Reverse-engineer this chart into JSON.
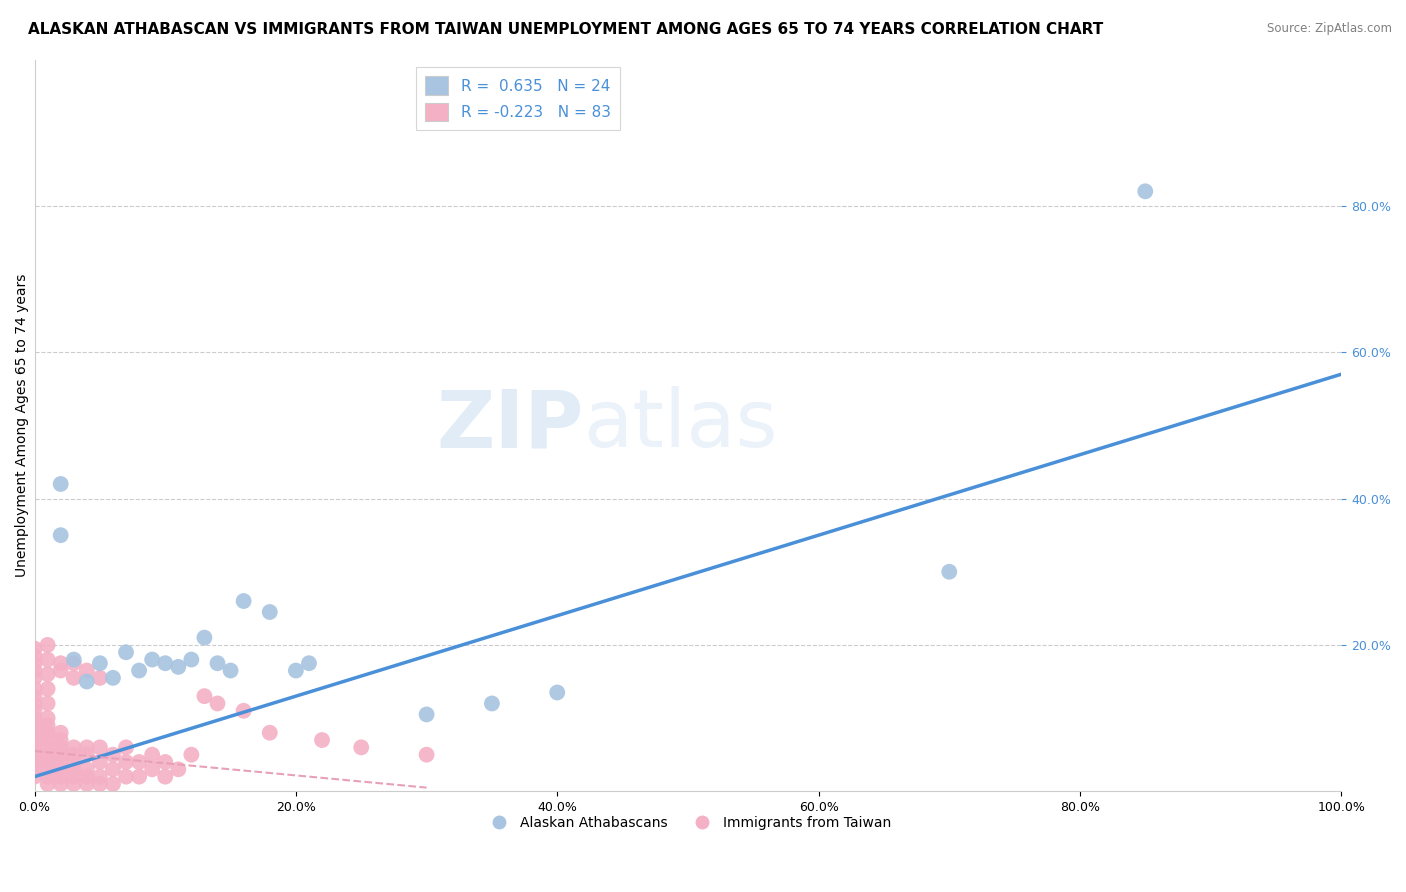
{
  "title": "ALASKAN ATHABASCAN VS IMMIGRANTS FROM TAIWAN UNEMPLOYMENT AMONG AGES 65 TO 74 YEARS CORRELATION CHART",
  "source": "Source: ZipAtlas.com",
  "ylabel": "Unemployment Among Ages 65 to 74 years",
  "xlabel": "",
  "xlim": [
    0,
    1.0
  ],
  "ylim": [
    0,
    1.0
  ],
  "xticks": [
    0.0,
    0.2,
    0.4,
    0.6,
    0.8,
    1.0
  ],
  "xticklabels": [
    "0.0%",
    "20.0%",
    "40.0%",
    "60.0%",
    "80.0%",
    "100.0%"
  ],
  "yticks": [
    0.2,
    0.4,
    0.6,
    0.8
  ],
  "yticklabels": [
    "20.0%",
    "40.0%",
    "60.0%",
    "80.0%"
  ],
  "legend_r1": "R =  0.635   N = 24",
  "legend_r2": "R = -0.223   N = 83",
  "blue_color": "#a8c4e0",
  "pink_color": "#f4b0c5",
  "blue_line_color": "#4a90d9",
  "pink_line_color": "#e8a0b8",
  "watermark_zip": "ZIP",
  "watermark_atlas": "atlas",
  "title_fontsize": 11,
  "axis_fontsize": 10,
  "blue_scatter": [
    [
      0.02,
      0.42
    ],
    [
      0.02,
      0.35
    ],
    [
      0.03,
      0.18
    ],
    [
      0.04,
      0.15
    ],
    [
      0.05,
      0.175
    ],
    [
      0.06,
      0.155
    ],
    [
      0.07,
      0.19
    ],
    [
      0.08,
      0.165
    ],
    [
      0.09,
      0.18
    ],
    [
      0.1,
      0.175
    ],
    [
      0.11,
      0.17
    ],
    [
      0.12,
      0.18
    ],
    [
      0.13,
      0.21
    ],
    [
      0.14,
      0.175
    ],
    [
      0.15,
      0.165
    ],
    [
      0.16,
      0.26
    ],
    [
      0.18,
      0.245
    ],
    [
      0.2,
      0.165
    ],
    [
      0.21,
      0.175
    ],
    [
      0.3,
      0.105
    ],
    [
      0.35,
      0.12
    ],
    [
      0.4,
      0.135
    ],
    [
      0.7,
      0.3
    ],
    [
      0.85,
      0.82
    ]
  ],
  "pink_scatter": [
    [
      0.0,
      0.02
    ],
    [
      0.0,
      0.03
    ],
    [
      0.0,
      0.04
    ],
    [
      0.0,
      0.05
    ],
    [
      0.0,
      0.06
    ],
    [
      0.0,
      0.07
    ],
    [
      0.0,
      0.08
    ],
    [
      0.0,
      0.09
    ],
    [
      0.0,
      0.1
    ],
    [
      0.0,
      0.11
    ],
    [
      0.0,
      0.12
    ],
    [
      0.0,
      0.13
    ],
    [
      0.0,
      0.14
    ],
    [
      0.0,
      0.155
    ],
    [
      0.0,
      0.165
    ],
    [
      0.0,
      0.175
    ],
    [
      0.0,
      0.185
    ],
    [
      0.0,
      0.195
    ],
    [
      0.01,
      0.01
    ],
    [
      0.01,
      0.02
    ],
    [
      0.01,
      0.03
    ],
    [
      0.01,
      0.04
    ],
    [
      0.01,
      0.05
    ],
    [
      0.01,
      0.06
    ],
    [
      0.01,
      0.07
    ],
    [
      0.01,
      0.08
    ],
    [
      0.01,
      0.09
    ],
    [
      0.01,
      0.1
    ],
    [
      0.01,
      0.12
    ],
    [
      0.01,
      0.14
    ],
    [
      0.01,
      0.16
    ],
    [
      0.01,
      0.18
    ],
    [
      0.01,
      0.2
    ],
    [
      0.02,
      0.01
    ],
    [
      0.02,
      0.02
    ],
    [
      0.02,
      0.03
    ],
    [
      0.02,
      0.04
    ],
    [
      0.02,
      0.05
    ],
    [
      0.02,
      0.06
    ],
    [
      0.02,
      0.07
    ],
    [
      0.02,
      0.08
    ],
    [
      0.02,
      0.165
    ],
    [
      0.02,
      0.175
    ],
    [
      0.03,
      0.01
    ],
    [
      0.03,
      0.02
    ],
    [
      0.03,
      0.03
    ],
    [
      0.03,
      0.04
    ],
    [
      0.03,
      0.05
    ],
    [
      0.03,
      0.06
    ],
    [
      0.03,
      0.155
    ],
    [
      0.03,
      0.175
    ],
    [
      0.04,
      0.01
    ],
    [
      0.04,
      0.02
    ],
    [
      0.04,
      0.03
    ],
    [
      0.04,
      0.05
    ],
    [
      0.04,
      0.06
    ],
    [
      0.04,
      0.165
    ],
    [
      0.05,
      0.01
    ],
    [
      0.05,
      0.02
    ],
    [
      0.05,
      0.04
    ],
    [
      0.05,
      0.06
    ],
    [
      0.05,
      0.155
    ],
    [
      0.06,
      0.01
    ],
    [
      0.06,
      0.03
    ],
    [
      0.06,
      0.05
    ],
    [
      0.07,
      0.02
    ],
    [
      0.07,
      0.04
    ],
    [
      0.07,
      0.06
    ],
    [
      0.08,
      0.02
    ],
    [
      0.08,
      0.04
    ],
    [
      0.09,
      0.03
    ],
    [
      0.09,
      0.05
    ],
    [
      0.1,
      0.02
    ],
    [
      0.1,
      0.04
    ],
    [
      0.11,
      0.03
    ],
    [
      0.12,
      0.05
    ],
    [
      0.13,
      0.13
    ],
    [
      0.14,
      0.12
    ],
    [
      0.16,
      0.11
    ],
    [
      0.18,
      0.08
    ],
    [
      0.22,
      0.07
    ],
    [
      0.25,
      0.06
    ],
    [
      0.3,
      0.05
    ]
  ],
  "background_color": "#ffffff",
  "grid_color": "#cccccc",
  "tick_color": "#4a90d9",
  "legend_text_color": "#4a90d9"
}
